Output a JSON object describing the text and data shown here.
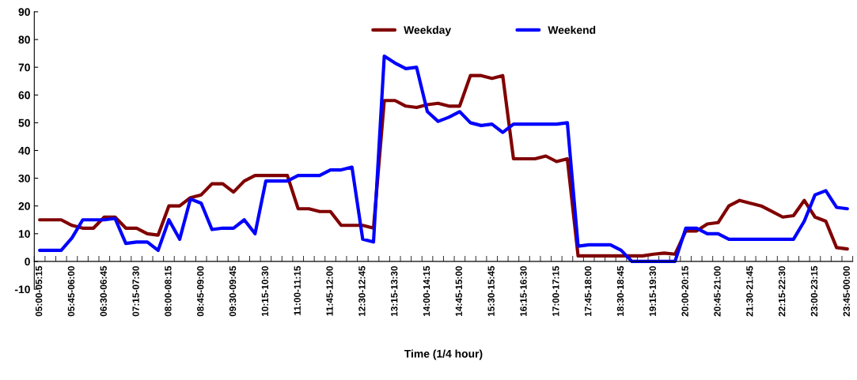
{
  "chart_data": {
    "type": "line",
    "xlabel": "Time (1/4 hour)",
    "categories": [
      "05:00-05:15",
      null,
      null,
      "05:45-06:00",
      null,
      null,
      "06:30-06:45",
      null,
      null,
      "07:15-07:30",
      null,
      null,
      "08:00-08:15",
      null,
      null,
      "08:45-09:00",
      null,
      null,
      "09:30-09:45",
      null,
      null,
      "10:15-10:30",
      null,
      null,
      "11:00-11:15",
      null,
      null,
      "11:45-12:00",
      null,
      null,
      "12:30-12:45",
      null,
      null,
      "13:15-13:30",
      null,
      null,
      "14:00-14:15",
      null,
      null,
      "14:45-15:00",
      null,
      null,
      "15:30-15:45",
      null,
      null,
      "16:15-16:30",
      null,
      null,
      "17:00-17:15",
      null,
      null,
      "17:45-18:00",
      null,
      null,
      "18:30-18:45",
      null,
      null,
      "19:15-19:30",
      null,
      null,
      "20:00-20:15",
      null,
      null,
      "20:45-21:00",
      null,
      null,
      "21:30-21:45",
      null,
      null,
      "22:15-22:30",
      null,
      null,
      "23:00-23:15",
      null,
      null,
      "23:45-00:00"
    ],
    "series": [
      {
        "name": "Weekday",
        "color": "#800000",
        "values": [
          15,
          15,
          15,
          13,
          12,
          12,
          16,
          16,
          12,
          12,
          10,
          9.5,
          20,
          20,
          23,
          24,
          28,
          28,
          25,
          29,
          31,
          31,
          31,
          31,
          19,
          19,
          18,
          18,
          13,
          13,
          13,
          12,
          58,
          58,
          56,
          55.5,
          56.5,
          57,
          56,
          56,
          67,
          67,
          66,
          67,
          37,
          37,
          37,
          38,
          36,
          37,
          2,
          2,
          2,
          2,
          2,
          2,
          2,
          2.6,
          3,
          2.6,
          11,
          11,
          13.5,
          14,
          20,
          22,
          21,
          20,
          18,
          16,
          16.5,
          22,
          16,
          14.5,
          5,
          4.5
        ]
      },
      {
        "name": "Weekend",
        "color": "#0000ff",
        "values": [
          4,
          4,
          4,
          8.5,
          15,
          15,
          15,
          15.5,
          6.5,
          7,
          7,
          4,
          15,
          8,
          22.5,
          21,
          11.5,
          12,
          12,
          15,
          10,
          29,
          29,
          29,
          31,
          31,
          31,
          33,
          33,
          34,
          8,
          7,
          74,
          71.5,
          69.5,
          70,
          54,
          50.5,
          52,
          54,
          50,
          49,
          49.5,
          46.5,
          49.5,
          49.5,
          49.5,
          49.5,
          49.5,
          50,
          5.5,
          6,
          6,
          6,
          4,
          0,
          0,
          0,
          0,
          0,
          12,
          12,
          10,
          10,
          8,
          8,
          8,
          8,
          8,
          8,
          8,
          14.5,
          24,
          25.5,
          19.5,
          19
        ]
      }
    ],
    "ylim": [
      -10,
      90
    ],
    "yticks": [
      -10,
      0,
      10,
      20,
      30,
      40,
      50,
      60,
      70,
      80,
      90
    ],
    "legend": "top",
    "grid": false,
    "marker": "none",
    "line_style": "solid"
  }
}
